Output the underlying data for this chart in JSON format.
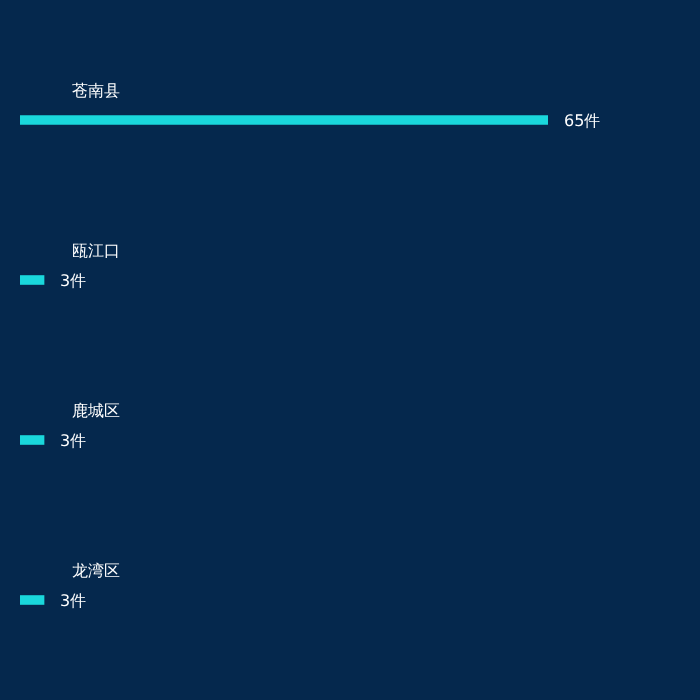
{
  "chart_data": {
    "type": "bar",
    "orientation": "horizontal",
    "categories": [
      "苍南县",
      "瓯江口",
      "鹿城区",
      "龙湾区"
    ],
    "values": [
      65,
      3,
      3,
      3
    ],
    "value_labels": [
      "65件",
      "3件",
      "3件",
      "3件"
    ],
    "color": "#1ad8dc"
  }
}
